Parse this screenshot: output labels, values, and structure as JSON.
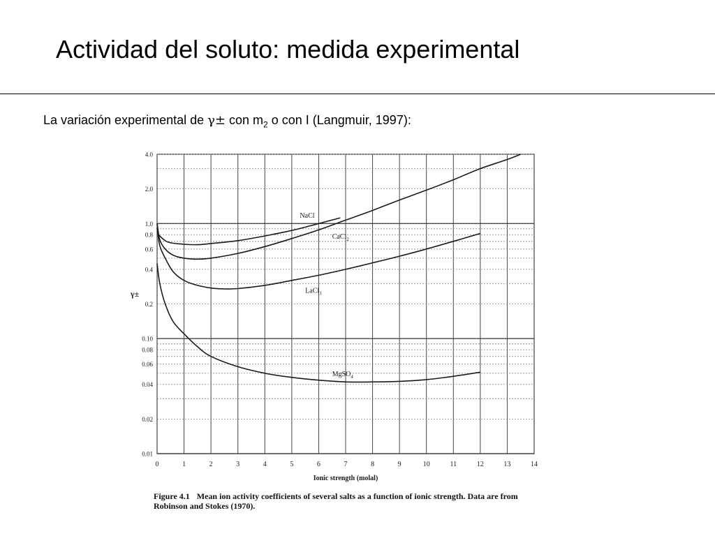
{
  "slide": {
    "title": "Actividad del soluto: medida experimental",
    "subtitle_pre": "La variación experimental de ",
    "gamma_symbol": "γ±",
    "subtitle_mid": " con m",
    "subtitle_sub": "2",
    "subtitle_post": " o con I (Langmuir, 1997):"
  },
  "caption": {
    "label": "Figure 4.1",
    "text": "Mean ion activity coefficients of several salts as a function of ionic strength. Data are from Robinson and Stokes (1970)."
  },
  "chart_data": {
    "type": "line",
    "xlabel": "Ionic strength (molal)",
    "ylabel": "γ±",
    "xlim": [
      0,
      14
    ],
    "ylim": [
      0.01,
      4.0
    ],
    "y_scale": "log",
    "x_ticks": [
      0,
      1,
      2,
      3,
      4,
      5,
      6,
      7,
      8,
      9,
      10,
      11,
      12,
      13,
      14
    ],
    "y_ticks": [
      {
        "value": 4.0,
        "label": "4.0"
      },
      {
        "value": 2.0,
        "label": "2.0"
      },
      {
        "value": 1.0,
        "label": "1.0"
      },
      {
        "value": 0.8,
        "label": "0.8"
      },
      {
        "value": 0.6,
        "label": "0.6"
      },
      {
        "value": 0.4,
        "label": "0.4"
      },
      {
        "value": 0.2,
        "label": "0.2"
      },
      {
        "value": 0.1,
        "label": "0.10"
      },
      {
        "value": 0.08,
        "label": "0.08"
      },
      {
        "value": 0.06,
        "label": "0.06"
      },
      {
        "value": 0.04,
        "label": "0.04"
      },
      {
        "value": 0.02,
        "label": "0.02"
      },
      {
        "value": 0.01,
        "label": "0.01"
      }
    ],
    "grid": true,
    "series": [
      {
        "name": "NaCl",
        "label_at": [
          5.3,
          1.12
        ],
        "points": [
          [
            0,
            1.0
          ],
          [
            0.05,
            0.82
          ],
          [
            0.1,
            0.78
          ],
          [
            0.3,
            0.71
          ],
          [
            0.5,
            0.68
          ],
          [
            1,
            0.66
          ],
          [
            1.5,
            0.655
          ],
          [
            2,
            0.67
          ],
          [
            3,
            0.71
          ],
          [
            4,
            0.78
          ],
          [
            5,
            0.87
          ],
          [
            6,
            1.0
          ],
          [
            6.8,
            1.12
          ]
        ]
      },
      {
        "name": "CaCl2",
        "label_at": [
          6.5,
          0.74
        ],
        "points": [
          [
            0,
            1.0
          ],
          [
            0.1,
            0.72
          ],
          [
            0.3,
            0.6
          ],
          [
            0.6,
            0.53
          ],
          [
            1,
            0.5
          ],
          [
            1.5,
            0.49
          ],
          [
            2,
            0.5
          ],
          [
            3,
            0.55
          ],
          [
            4,
            0.63
          ],
          [
            5,
            0.74
          ],
          [
            6,
            0.88
          ],
          [
            7,
            1.07
          ],
          [
            8,
            1.3
          ],
          [
            9,
            1.6
          ],
          [
            10,
            1.95
          ],
          [
            11,
            2.4
          ],
          [
            12,
            3.0
          ],
          [
            13,
            3.6
          ],
          [
            13.5,
            4.0
          ]
        ]
      },
      {
        "name": "LaCl3",
        "label_at": [
          5.5,
          0.25
        ],
        "points": [
          [
            0,
            0.92
          ],
          [
            0.1,
            0.64
          ],
          [
            0.3,
            0.5
          ],
          [
            0.6,
            0.38
          ],
          [
            1,
            0.32
          ],
          [
            1.5,
            0.29
          ],
          [
            2,
            0.275
          ],
          [
            2.5,
            0.27
          ],
          [
            3,
            0.272
          ],
          [
            4,
            0.29
          ],
          [
            5,
            0.32
          ],
          [
            6,
            0.355
          ],
          [
            7,
            0.4
          ],
          [
            8,
            0.455
          ],
          [
            9,
            0.52
          ],
          [
            10,
            0.6
          ],
          [
            11,
            0.7
          ],
          [
            12,
            0.82
          ]
        ]
      },
      {
        "name": "MgSO4",
        "label_at": [
          6.5,
          0.047
        ],
        "points": [
          [
            0,
            0.45
          ],
          [
            0.1,
            0.3
          ],
          [
            0.3,
            0.2
          ],
          [
            0.6,
            0.14
          ],
          [
            1,
            0.11
          ],
          [
            1.5,
            0.085
          ],
          [
            2,
            0.07
          ],
          [
            3,
            0.057
          ],
          [
            4,
            0.05
          ],
          [
            5,
            0.046
          ],
          [
            6,
            0.0435
          ],
          [
            7,
            0.042
          ],
          [
            8,
            0.042
          ],
          [
            9,
            0.0425
          ],
          [
            10,
            0.044
          ],
          [
            11,
            0.047
          ],
          [
            12,
            0.051
          ]
        ]
      }
    ]
  }
}
